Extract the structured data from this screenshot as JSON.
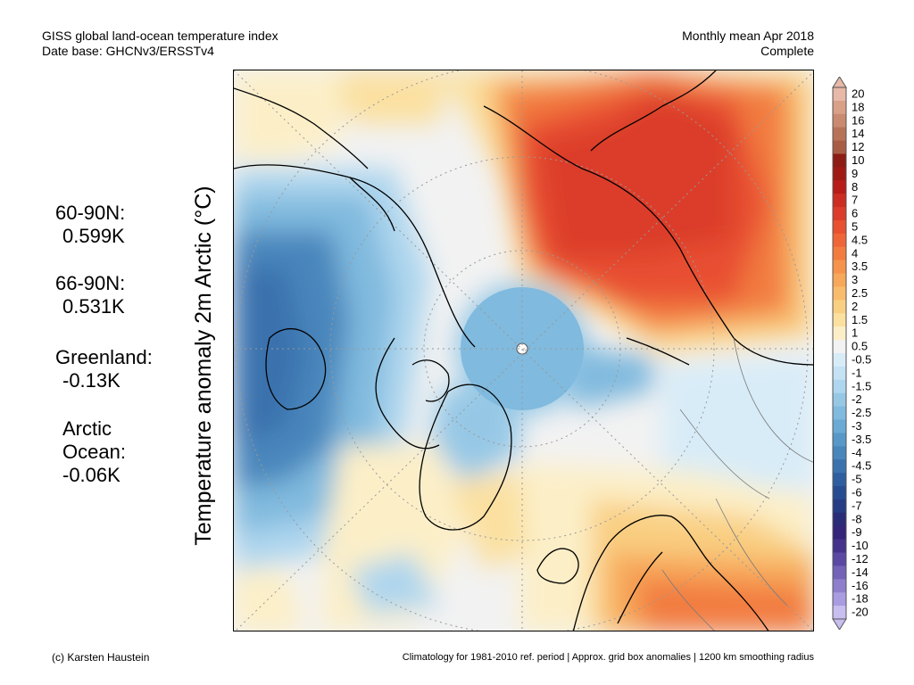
{
  "header": {
    "title_line1": "GISS global land-ocean temperature index",
    "title_line2": "Date base: GHCNv3/ERSSTv4",
    "period_line1": "Monthly mean Apr 2018",
    "period_line2": "Complete"
  },
  "map": {
    "ylabel": "Temperature anomaly 2m Arctic (°C)",
    "projection": "north-polar-stereographic"
  },
  "stats": [
    {
      "label": "60-90N:",
      "value": "0.599K"
    },
    {
      "label": "66-90N:",
      "value": "0.531K"
    },
    {
      "label": "Greenland:",
      "value": "-0.13K"
    },
    {
      "label": "Arctic",
      "label2": "Ocean:",
      "value": "-0.06K"
    }
  ],
  "colorbar": {
    "ticks": [
      "20",
      "18",
      "16",
      "14",
      "12",
      "10",
      "9",
      "8",
      "7",
      "6",
      "5",
      "4.5",
      "4",
      "3.5",
      "3",
      "2.5",
      "2",
      "1.5",
      "1",
      "0.5",
      "-0.5",
      "-1",
      "-1.5",
      "-2",
      "-2.5",
      "-3",
      "-3.5",
      "-4",
      "-4.5",
      "-5",
      "-6",
      "-7",
      "-8",
      "-9",
      "-10",
      "-12",
      "-14",
      "-16",
      "-18",
      "-20"
    ],
    "colors": [
      "#e8b8a8",
      "#d9a088",
      "#c98a70",
      "#b87258",
      "#a85c44",
      "#8c1c14",
      "#a01a14",
      "#b81c18",
      "#cc2c22",
      "#dc3c2c",
      "#e85030",
      "#ee6638",
      "#f27c40",
      "#f5934c",
      "#f7a85a",
      "#f8bc6c",
      "#f9cf82",
      "#fbe0a0",
      "#fcefc8",
      "#f2f2f2",
      "#d8ecf8",
      "#c4e2f4",
      "#aed6ee",
      "#96c8e6",
      "#80bade",
      "#6aaad4",
      "#5898c8",
      "#4886bc",
      "#3a72ae",
      "#2e5ea0",
      "#284c92",
      "#263c84",
      "#2a2c78",
      "#34247a",
      "#44328c",
      "#5a48a4",
      "#7462b8",
      "#8e7ecc",
      "#aa9ce0",
      "#c8bef0"
    ]
  },
  "footer": {
    "left": "(c) Karsten Haustein",
    "right": "Climatology for 1981-2010 ref. period | Approx. grid box anomalies | 1200 km smoothing radius"
  }
}
